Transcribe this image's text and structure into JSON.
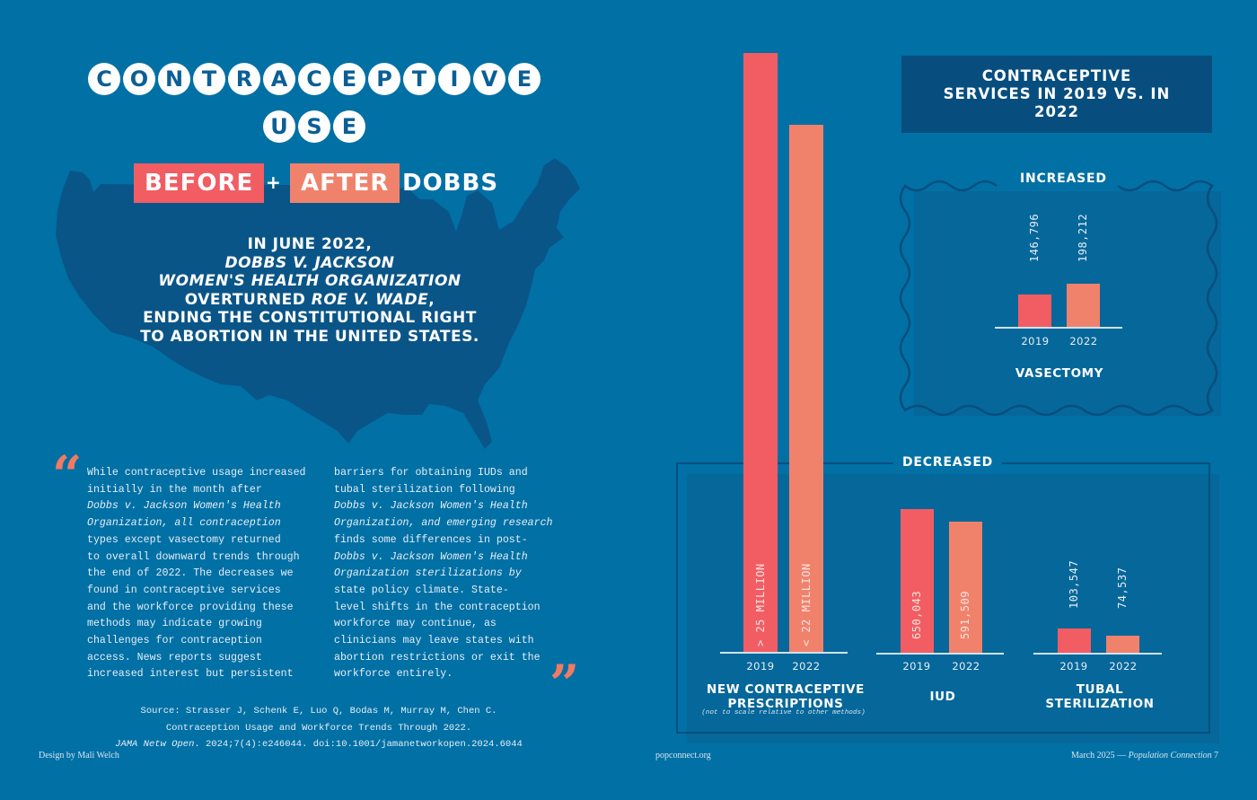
{
  "title": {
    "line1_letters": [
      "C",
      "O",
      "N",
      "T",
      "R",
      "A",
      "C",
      "E",
      "P",
      "T",
      "I",
      "V",
      "E"
    ],
    "line2_letters": [
      "U",
      "S",
      "E"
    ],
    "before": "BEFORE",
    "plus": "+",
    "after": "AFTER",
    "dobbs": "DOBBS"
  },
  "intro": {
    "line1": "IN JUNE 2022,",
    "line2": "DOBBS V. JACKSON",
    "line3": "WOMEN'S HEALTH ORGANIZATION",
    "line4a": "OVERTURNED ",
    "line4b": "ROE V. WADE",
    "line4c": ",",
    "line5": "ENDING THE CONSTITUTIONAL RIGHT",
    "line6": "TO ABORTION IN THE UNITED STATES."
  },
  "quote": {
    "open_mark": "“",
    "close_mark": "”",
    "col1": [
      "While contraceptive usage increased",
      "initially in the month after",
      "Dobbs v. Jackson Women's Health",
      "Organization, all contraception",
      "types except vasectomy returned",
      "to overall downward trends through",
      "the end of 2022. The decreases we",
      "found in contraceptive services",
      "and the workforce providing these",
      "methods may indicate growing",
      "challenges for contraception",
      "access. News reports suggest",
      "increased interest but persistent"
    ],
    "col2": [
      "barriers for obtaining IUDs and",
      "tubal sterilization following",
      "Dobbs v. Jackson Women's Health",
      "Organization, and emerging research",
      "finds some differences in post-",
      "Dobbs v. Jackson Women's Health",
      "Organization sterilizations by",
      "state policy climate. State-",
      "level shifts in the contraception",
      "workforce may continue, as",
      "clinicians may leave states with",
      "abortion restrictions or exit the",
      "workforce entirely."
    ]
  },
  "source": {
    "line1": "Source: Strasser J, Schenk E, Luo Q, Bodas M, Murray M, Chen C.",
    "line2": "Contraception Usage and Workforce Trends Through 2022.",
    "line3a": "JAMA Netw Open",
    "line3b": ". 2024;7(4):e246044. doi:10.1001/jamanetworkopen.2024.6044"
  },
  "footer": {
    "design": "Design by Mali Welch",
    "site": "popconnect.org",
    "issue_a": "March 2025 — ",
    "issue_b": "Population Connection",
    "page": "7"
  },
  "colors": {
    "background": "#0170a5",
    "dark_blue": "#074e7f",
    "year_2019": "#f25d63",
    "year_2022": "#f0826b"
  },
  "chart_data": {
    "type": "bar",
    "title": "CONTRACEPTIVE SERVICES IN 2019 VS. IN 2022",
    "categories": [
      "2019",
      "2022"
    ],
    "groups": [
      {
        "section": "INCREASED",
        "name": "VASECTOMY",
        "values": [
          146796,
          198212
        ],
        "labels": [
          "146,796",
          "198,212"
        ]
      },
      {
        "section": "DECREASED",
        "name_line1": "NEW CONTRACEPTIVE",
        "name_line2": "PRESCRIPTIONS",
        "note": "(not to scale relative to other methods)",
        "values": [
          25000000,
          22000000
        ],
        "labels": [
          "> 25 MILLION",
          "< 22 MILLION"
        ]
      },
      {
        "section": "DECREASED",
        "name": "IUD",
        "values": [
          650043,
          591509
        ],
        "labels": [
          "650,043",
          "591,509"
        ]
      },
      {
        "section": "DECREASED",
        "name_line1": "TUBAL",
        "name_line2": "STERILIZATION",
        "values": [
          103547,
          74537
        ],
        "labels": [
          "103,547",
          "74,537"
        ]
      }
    ],
    "sections": [
      "INCREASED",
      "DECREASED"
    ]
  }
}
